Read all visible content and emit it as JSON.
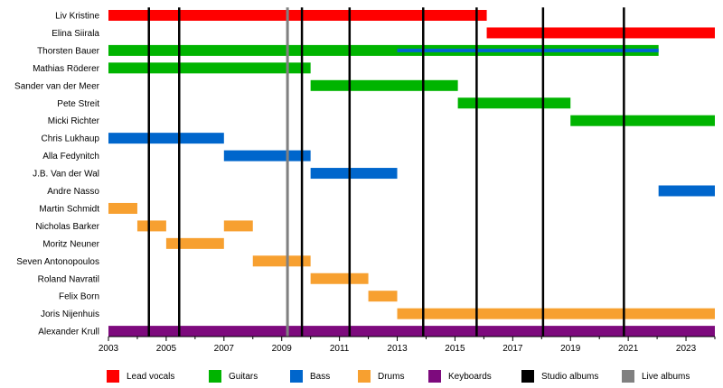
{
  "chart_data": {
    "type": "timeline",
    "xlim": [
      2003,
      2024
    ],
    "x_ticks": [
      "2003",
      "2005",
      "2007",
      "2009",
      "2011",
      "2013",
      "2015",
      "2017",
      "2019",
      "2021",
      "2023"
    ],
    "role_colors": {
      "Lead vocals": "#ff0000",
      "Guitars": "#00b400",
      "Bass": "#0066cc",
      "Drums": "#f7a030",
      "Keyboards": "#7d0a7d"
    },
    "members": [
      {
        "name": "Liv Kristine",
        "bars": [
          {
            "role": "Lead vocals",
            "start": 2003,
            "end": 2016.1
          }
        ]
      },
      {
        "name": "Elina Siirala",
        "bars": [
          {
            "role": "Lead vocals",
            "start": 2016.1,
            "end": 2024
          }
        ]
      },
      {
        "name": "Thorsten Bauer",
        "bars": [
          {
            "role": "Guitars",
            "start": 2003,
            "end": 2022.05
          },
          {
            "role": "Bass",
            "start": 2013,
            "end": 2022.05
          }
        ]
      },
      {
        "name": "Mathias Röderer",
        "bars": [
          {
            "role": "Guitars",
            "start": 2003,
            "end": 2010
          }
        ]
      },
      {
        "name": "Sander van der Meer",
        "bars": [
          {
            "role": "Guitars",
            "start": 2010,
            "end": 2015.1
          }
        ]
      },
      {
        "name": "Pete Streit",
        "bars": [
          {
            "role": "Guitars",
            "start": 2015.1,
            "end": 2019
          }
        ]
      },
      {
        "name": "Micki Richter",
        "bars": [
          {
            "role": "Guitars",
            "start": 2019,
            "end": 2024
          }
        ]
      },
      {
        "name": "Chris Lukhaup",
        "bars": [
          {
            "role": "Bass",
            "start": 2003,
            "end": 2007
          }
        ]
      },
      {
        "name": "Alla Fedynitch",
        "bars": [
          {
            "role": "Bass",
            "start": 2007,
            "end": 2010
          }
        ]
      },
      {
        "name": "J.B. Van der Wal",
        "bars": [
          {
            "role": "Bass",
            "start": 2010,
            "end": 2013
          }
        ]
      },
      {
        "name": "Andre Nasso",
        "bars": [
          {
            "role": "Bass",
            "start": 2022.05,
            "end": 2024
          }
        ]
      },
      {
        "name": "Martin Schmidt",
        "bars": [
          {
            "role": "Drums",
            "start": 2003,
            "end": 2004
          }
        ]
      },
      {
        "name": "Nicholas Barker",
        "bars": [
          {
            "role": "Drums",
            "start": 2004,
            "end": 2005
          },
          {
            "role": "Drums",
            "start": 2007,
            "end": 2008
          }
        ]
      },
      {
        "name": "Moritz Neuner",
        "bars": [
          {
            "role": "Drums",
            "start": 2005,
            "end": 2007
          }
        ]
      },
      {
        "name": "Seven Antonopoulos",
        "bars": [
          {
            "role": "Drums",
            "start": 2008,
            "end": 2010
          }
        ]
      },
      {
        "name": "Roland Navratil",
        "bars": [
          {
            "role": "Drums",
            "start": 2010,
            "end": 2012
          }
        ]
      },
      {
        "name": "Felix Born",
        "bars": [
          {
            "role": "Drums",
            "start": 2012,
            "end": 2013
          }
        ]
      },
      {
        "name": "Joris Nijenhuis",
        "bars": [
          {
            "role": "Drums",
            "start": 2013,
            "end": 2024
          }
        ]
      },
      {
        "name": "Alexander Krull",
        "bars": [
          {
            "role": "Keyboards",
            "start": 2003,
            "end": 2024
          }
        ]
      }
    ],
    "studio_albums": [
      2004.4,
      2005.45,
      2009.7,
      2011.35,
      2013.9,
      2015.75,
      2018.05,
      2020.85
    ],
    "live_albums": [
      2009.2
    ],
    "album_colors": {
      "studio": "#000000",
      "live": "#808080"
    },
    "legend": [
      {
        "label": "Lead vocals",
        "color": "#ff0000"
      },
      {
        "label": "Guitars",
        "color": "#00b400"
      },
      {
        "label": "Bass",
        "color": "#0066cc"
      },
      {
        "label": "Drums",
        "color": "#f7a030"
      },
      {
        "label": "Keyboards",
        "color": "#7d0a7d"
      },
      {
        "label": "Studio albums",
        "color": "#000000"
      },
      {
        "label": "Live albums",
        "color": "#808080"
      }
    ]
  }
}
